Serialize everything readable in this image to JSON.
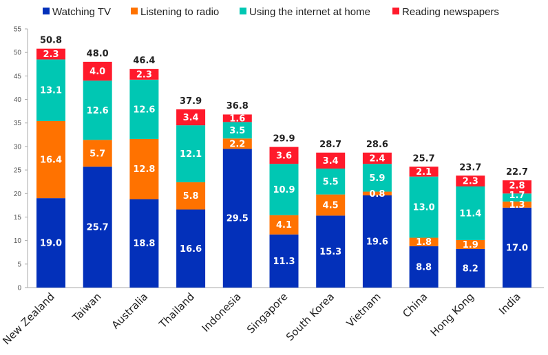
{
  "chart_data": {
    "type": "bar",
    "stacked": true,
    "title": "",
    "xlabel": "",
    "ylabel": "",
    "ylim": [
      0,
      55
    ],
    "yticks": [
      0,
      5,
      10,
      15,
      20,
      25,
      30,
      35,
      40,
      45,
      50,
      55
    ],
    "legend_position": "top",
    "categories": [
      "New Zealand",
      "Taiwan",
      "Australia",
      "Thailand",
      "Indonesia",
      "Singapore",
      "South Korea",
      "Vietnam",
      "China",
      "Hong Kong",
      "India"
    ],
    "series": [
      {
        "name": "Watching TV",
        "color": "#0330BA",
        "values": [
          19.0,
          25.7,
          18.8,
          16.6,
          29.5,
          11.3,
          15.3,
          19.6,
          8.8,
          8.2,
          17.0
        ]
      },
      {
        "name": "Listening to radio",
        "color": "#FF7200",
        "values": [
          16.4,
          5.7,
          12.8,
          5.8,
          2.2,
          4.1,
          4.5,
          0.8,
          1.8,
          1.9,
          1.3
        ]
      },
      {
        "name": "Using the internet at home",
        "color": "#00C7B3",
        "values": [
          13.1,
          12.6,
          12.6,
          12.1,
          3.5,
          10.9,
          5.5,
          5.9,
          13.0,
          11.4,
          1.7
        ]
      },
      {
        "name": "Reading newspapers",
        "color": "#FF1A2B",
        "values": [
          2.3,
          4.0,
          2.3,
          3.4,
          1.6,
          3.6,
          3.4,
          2.4,
          2.1,
          2.3,
          2.8
        ]
      }
    ],
    "totals": [
      50.8,
      48.0,
      46.4,
      37.9,
      36.8,
      29.9,
      28.7,
      28.6,
      25.7,
      23.7,
      22.7
    ]
  }
}
